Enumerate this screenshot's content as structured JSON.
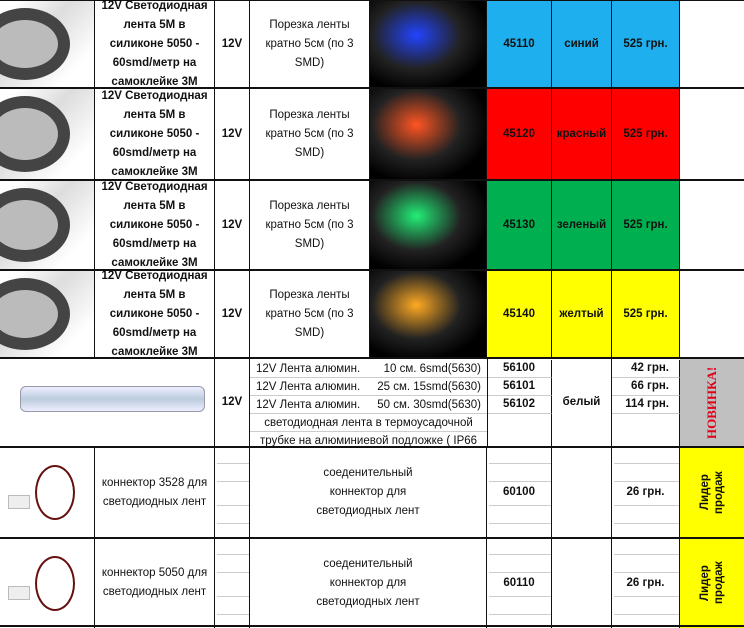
{
  "strip_rows": [
    {
      "name": "12V Светодиодная лента 5М в силиконе 5050 - 60smd/метр на самоклейке 3М",
      "voltage": "12V",
      "cut": "Порезка ленты кратно 5см (по 3 SMD)",
      "code": "45110",
      "color": "синий",
      "price": "525 грн.",
      "bg": "#1eb0ee",
      "glow": "#2244ff"
    },
    {
      "name": "12V Светодиодная лента 5М в силиконе 5050 - 60smd/метр на самоклейке 3М",
      "voltage": "12V",
      "cut": "Порезка ленты кратно 5см (по 3 SMD)",
      "code": "45120",
      "color": "красный",
      "price": "525 грн.",
      "bg": "#ff0000",
      "glow": "#ff5522"
    },
    {
      "name": "12V Светодиодная лента 5М в силиконе 5050 - 60smd/метр на самоклейке 3М",
      "voltage": "12V",
      "cut": "Порезка ленты кратно 5см (по 3 SMD)",
      "code": "45130",
      "color": "зеленый",
      "price": "525 грн.",
      "bg": "#00b050",
      "glow": "#22ee77"
    },
    {
      "name": "12V Светодиодная лента 5М в силиконе 5050 - 60smd/метр на самоклейке 3М",
      "voltage": "12V",
      "cut": "Порезка ленты кратно 5см (по 3 SMD)",
      "code": "45140",
      "color": "желтый",
      "price": "525 грн.",
      "bg": "#ffff00",
      "glow": "#ffaa22"
    }
  ],
  "alu": {
    "voltage": "12V",
    "items": [
      {
        "label": "12V Лента алюмин.",
        "spec": "10 см.  6smd(5630)",
        "code": "56100",
        "price": "42 грн."
      },
      {
        "label": "12V Лента алюмин.",
        "spec": "25 см. 15smd(5630)",
        "code": "56101",
        "price": "66 грн."
      },
      {
        "label": "12V Лента алюмин.",
        "spec": "50 см. 30smd(5630)",
        "code": "56102",
        "price": "114 грн."
      }
    ],
    "note1": "светодиодная лента в термоусадочной",
    "note2": "трубке на алюминиевой подложке  ( IP66",
    "color": "белый",
    "badge": "НОВИНКА!"
  },
  "connectors": [
    {
      "name": "коннектор 3528 для светодиодных лент",
      "desc": "соеденительный коннектор для светодиодных лент",
      "code": "60100",
      "price": "26 грн.",
      "badge": "Лидер продаж"
    },
    {
      "name": "коннектор 5050 для светодиодных лент",
      "desc": "соеденительный коннектор для светодиодных лент",
      "code": "60110",
      "price": "26 грн.",
      "badge": "Лидер продаж"
    }
  ]
}
